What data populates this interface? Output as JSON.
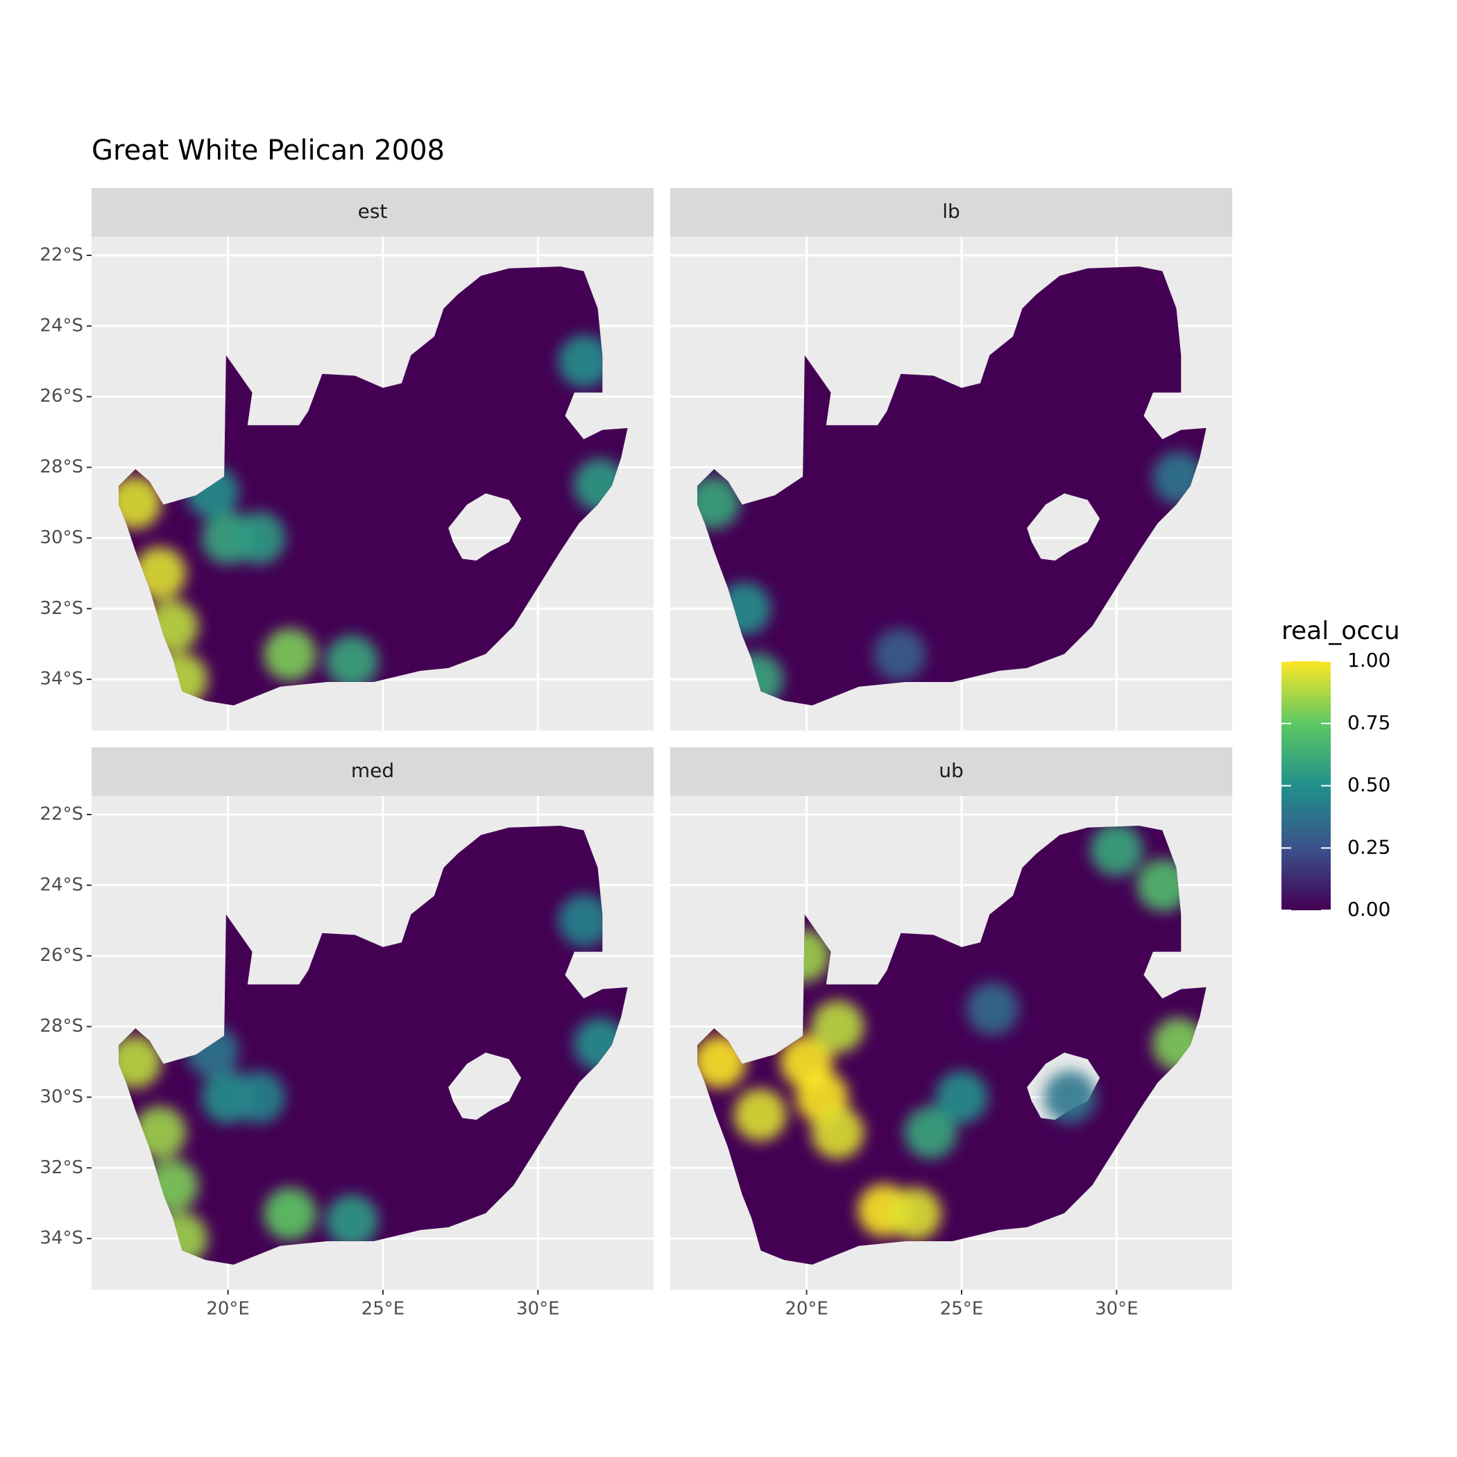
{
  "chart_data": {
    "type": "raster-map",
    "title": "Great White Pelican 2008",
    "xlim": [
      15.6,
      33.73
    ],
    "ylim": [
      -35.45,
      -21.47
    ],
    "xticks": [
      {
        "value": 20,
        "label": "20°E"
      },
      {
        "value": 25,
        "label": "25°E"
      },
      {
        "value": 30,
        "label": "30°E"
      }
    ],
    "yticks": [
      {
        "value": -22,
        "label": "22°S"
      },
      {
        "value": -24,
        "label": "24°S"
      },
      {
        "value": -26,
        "label": "26°S"
      },
      {
        "value": -28,
        "label": "28°S"
      },
      {
        "value": -30,
        "label": "30°S"
      },
      {
        "value": -32,
        "label": "32°S"
      },
      {
        "value": -34,
        "label": "34°S"
      }
    ],
    "grid": true,
    "facets": [
      {
        "name": "est",
        "lon": [
          17,
          17.8,
          18.2,
          18.5,
          20,
          21,
          22,
          24,
          31.5,
          32,
          19.5
        ],
        "lat": [
          -29,
          -31,
          -32.5,
          -34,
          -30,
          -30,
          -33.3,
          -33.5,
          -25,
          -28.5,
          -28.7
        ],
        "values": [
          0.95,
          0.95,
          0.9,
          0.9,
          0.6,
          0.55,
          0.8,
          0.6,
          0.5,
          0.55,
          0.5
        ]
      },
      {
        "name": "lb",
        "lon": [
          17,
          18,
          18.4,
          23,
          32
        ],
        "lat": [
          -29,
          -32,
          -34,
          -33.3,
          -28.3
        ],
        "values": [
          0.6,
          0.5,
          0.6,
          0.3,
          0.4
        ]
      },
      {
        "name": "med",
        "lon": [
          17,
          17.8,
          18.2,
          18.5,
          20,
          21,
          22,
          24,
          31.5,
          32,
          19.5
        ],
        "lat": [
          -29,
          -31,
          -32.5,
          -34,
          -30,
          -30,
          -33.3,
          -33.5,
          -25,
          -28.5,
          -28.7
        ],
        "values": [
          0.9,
          0.85,
          0.8,
          0.85,
          0.5,
          0.45,
          0.75,
          0.55,
          0.45,
          0.5,
          0.4
        ]
      },
      {
        "name": "ub",
        "lon": [
          20,
          20.5,
          21,
          18.5,
          17.2,
          22.5,
          23.5,
          21,
          19.9,
          24,
          25,
          31.5,
          30,
          32,
          26,
          28.5
        ],
        "lat": [
          -29,
          -30,
          -31,
          -30.5,
          -29,
          -33.2,
          -33.3,
          -28,
          -26,
          -31,
          -30,
          -24,
          -23,
          -28.5,
          -27.5,
          -30
        ],
        "values": [
          1,
          1,
          0.95,
          0.95,
          1,
          1,
          0.95,
          0.9,
          0.85,
          0.6,
          0.5,
          0.7,
          0.6,
          0.8,
          0.35,
          0.4
        ]
      }
    ],
    "legend": {
      "title": "real_occu",
      "limits": [
        0,
        1
      ],
      "ticks": [
        {
          "value": 0,
          "label": "0.00"
        },
        {
          "value": 0.25,
          "label": "0.25"
        },
        {
          "value": 0.5,
          "label": "0.50"
        },
        {
          "value": 0.75,
          "label": "0.75"
        },
        {
          "value": 1,
          "label": "1.00"
        }
      ],
      "colors": [
        "#440154",
        "#3b528b",
        "#21908c",
        "#5dc863",
        "#fde725"
      ]
    }
  }
}
